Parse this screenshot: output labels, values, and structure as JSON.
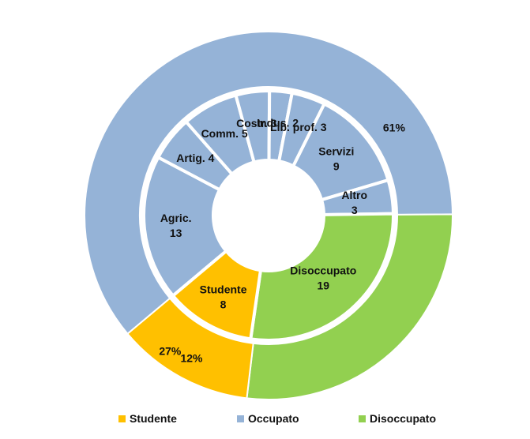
{
  "chart_data": {
    "type": "pie",
    "subtype": "nested-donut",
    "title": "",
    "colors": {
      "Studente": "#FFC000",
      "Occupato": "#95B3D7",
      "Disoccupato": "#92D050",
      "separator": "#ffffff"
    },
    "outer_ring": [
      {
        "name": "Studente",
        "value": 12,
        "label": "12%"
      },
      {
        "name": "Occupato",
        "value": 61,
        "label": "61%"
      },
      {
        "name": "Disoccupato",
        "value": 27,
        "label": "27%"
      }
    ],
    "inner_ring": [
      {
        "name": "Studente",
        "label": "Studente",
        "value": 8,
        "group": "Studente"
      },
      {
        "name": "Agric.",
        "label": "Agric.",
        "value": 13,
        "group": "Occupato"
      },
      {
        "name": "Artig.",
        "label": "Artig.",
        "value": 4,
        "group": "Occupato"
      },
      {
        "name": "Comm.",
        "label": "Comm.",
        "value": 5,
        "group": "Occupato"
      },
      {
        "name": "Costr.",
        "label": "Costr.",
        "value": 3,
        "group": "Occupato"
      },
      {
        "name": "Indus.",
        "label": "Indus.",
        "value": 2,
        "group": "Occupato"
      },
      {
        "name": "Lib. prof.",
        "label": "Lib. prof.",
        "value": 3,
        "group": "Occupato"
      },
      {
        "name": "Servizi",
        "label": "Servizi",
        "value": 9,
        "group": "Occupato"
      },
      {
        "name": "Altro",
        "label": "Altro",
        "value": 3,
        "group": "Occupato"
      },
      {
        "name": "Disoccupato",
        "label": "Disoccupato",
        "value": 19,
        "group": "Disoccupato"
      }
    ],
    "legend": {
      "position": "bottom",
      "items": [
        "Studente",
        "Occupato",
        "Disoccupato"
      ]
    }
  }
}
